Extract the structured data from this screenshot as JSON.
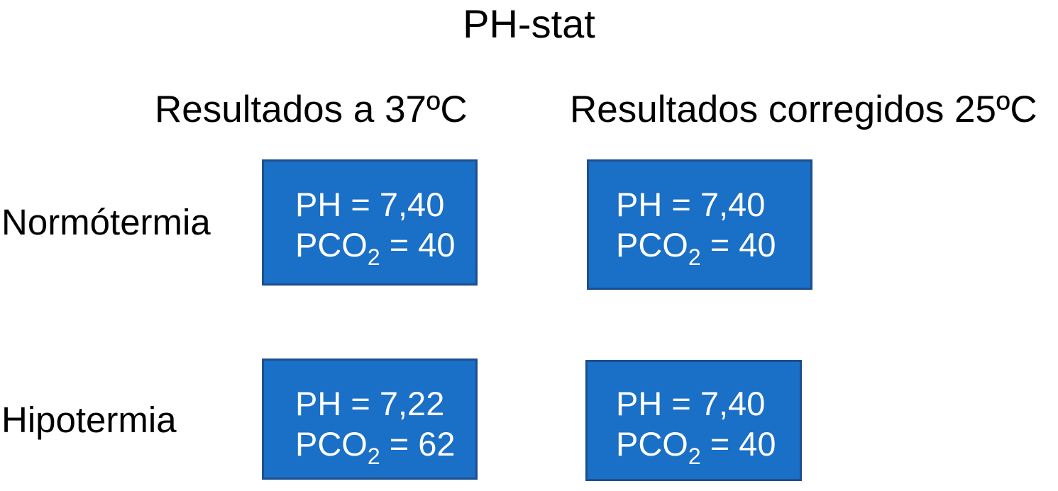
{
  "title": "PH-stat",
  "colors": {
    "box_fill": "#1a6fc6",
    "box_border": "#1d4f8f",
    "box_text": "#ffffff",
    "text": "#000000",
    "background": "#ffffff"
  },
  "columns": [
    {
      "label": "Resultados a 37ºC"
    },
    {
      "label": "Resultados corregidos 25ºC"
    }
  ],
  "rows": [
    {
      "label": "Normótermia",
      "cells": [
        {
          "ph_label": "PH = 7,40",
          "pco2_prefix": "PCO",
          "pco2_sub": "2",
          "pco2_suffix": " = 40"
        },
        {
          "ph_label": "PH = 7,40",
          "pco2_prefix": "PCO",
          "pco2_sub": "2",
          "pco2_suffix": " = 40"
        }
      ]
    },
    {
      "label": "Hipotermia",
      "cells": [
        {
          "ph_label": "PH = 7,22",
          "pco2_prefix": "PCO",
          "pco2_sub": "2",
          "pco2_suffix": " = 62"
        },
        {
          "ph_label": "PH = 7,40",
          "pco2_prefix": "PCO",
          "pco2_sub": "2",
          "pco2_suffix": " = 40"
        }
      ]
    }
  ]
}
